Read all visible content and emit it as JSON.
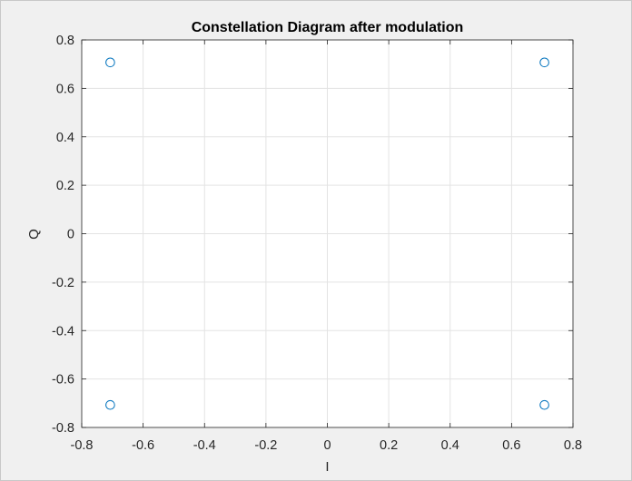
{
  "chart_data": {
    "type": "scatter",
    "title": "Constellation Diagram after modulation",
    "xlabel": "I",
    "ylabel": "Q",
    "xlim": [
      -0.8,
      0.8
    ],
    "ylim": [
      -0.8,
      0.8
    ],
    "xticks": [
      -0.8,
      -0.6,
      -0.4,
      -0.2,
      0,
      0.2,
      0.4,
      0.6,
      0.8
    ],
    "yticks": [
      -0.8,
      -0.6,
      -0.4,
      -0.2,
      0,
      0.2,
      0.4,
      0.6,
      0.8
    ],
    "xtick_labels": [
      "-0.8",
      "-0.6",
      "-0.4",
      "-0.2",
      "0",
      "0.2",
      "0.4",
      "0.6",
      "0.8"
    ],
    "ytick_labels": [
      "-0.8",
      "-0.6",
      "-0.4",
      "-0.2",
      "0",
      "0.2",
      "0.4",
      "0.6",
      "0.8"
    ],
    "grid": true,
    "marker": "circle",
    "marker_color": "#0072bd",
    "points": [
      {
        "x": -0.7071,
        "y": 0.7071
      },
      {
        "x": 0.7071,
        "y": 0.7071
      },
      {
        "x": -0.7071,
        "y": -0.7071
      },
      {
        "x": 0.7071,
        "y": -0.7071
      }
    ]
  }
}
